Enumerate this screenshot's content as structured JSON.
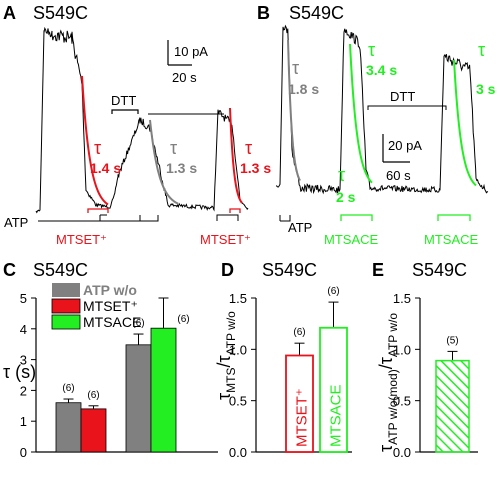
{
  "colors": {
    "gray": "#808080",
    "red": "#e8131b",
    "green": "#22ee22",
    "black": "#000000"
  },
  "chart_data": [
    {
      "type": "line",
      "panel": "A",
      "title": "S549C",
      "scalebars": {
        "y": "10 pA",
        "x": "20 s"
      },
      "segments": {
        "atp": "ATP",
        "mtset1": "MTSET⁺",
        "dtt": "DTT",
        "mtset2": "MTSET⁺"
      },
      "taus": [
        {
          "symbol": "τ",
          "value": "1.4 s",
          "color": "red"
        },
        {
          "symbol": "τ",
          "value": "1.3 s",
          "color": "gray"
        },
        {
          "symbol": "τ",
          "value": "1.3 s",
          "color": "red"
        }
      ]
    },
    {
      "type": "line",
      "panel": "B",
      "title": "S549C",
      "scalebars": {
        "y": "20 pA",
        "x": "60 s"
      },
      "segments": {
        "atp": "ATP",
        "mtsace1": "MTSACE",
        "dtt": "DTT",
        "mtsace2": "MTSACE"
      },
      "taus": [
        {
          "symbol": "τ",
          "value": "1.8 s",
          "color": "gray"
        },
        {
          "symbol": "τ",
          "value": "3.4 s",
          "color": "green"
        },
        {
          "symbol": "τ",
          "value": "2 s",
          "color": "green"
        },
        {
          "symbol": "τ",
          "value": "3 s",
          "color": "green"
        }
      ]
    },
    {
      "type": "bar",
      "panel": "C",
      "title": "S549C",
      "ylabel": "τ (s)",
      "ylim": [
        0,
        5
      ],
      "yticks": [
        "0",
        "1",
        "2",
        "3",
        "4",
        "5"
      ],
      "legend": [
        "ATP w/o",
        "MTSET⁺",
        "MTSACE"
      ],
      "legend_colors": [
        "gray",
        "red",
        "green"
      ],
      "groups": [
        {
          "bars": [
            {
              "series": "ATP w/o",
              "value": 1.6,
              "error": 0.12,
              "n": "(6)"
            },
            {
              "series": "MTSET⁺",
              "value": 1.4,
              "error": 0.1,
              "n": "(6)"
            }
          ]
        },
        {
          "bars": [
            {
              "series": "ATP w/o",
              "value": 3.48,
              "error": 0.35,
              "n": "(6)"
            },
            {
              "series": "MTSACE",
              "value": 4.02,
              "error": 0.98,
              "n": "(6)"
            }
          ]
        }
      ]
    },
    {
      "type": "bar",
      "panel": "D",
      "title": "S549C",
      "ylabel_main": "τ",
      "ylabel_sub": "MTS",
      "ylabel_den_main": "τ",
      "ylabel_den_sub": "ATP w/o",
      "ylim": [
        0,
        1.5
      ],
      "yticks": [
        "0.0",
        "0.5",
        "1.0",
        "1.5"
      ],
      "bars": [
        {
          "label": "MTSET⁺",
          "value": 0.94,
          "error": 0.12,
          "n": "(6)",
          "color": "red"
        },
        {
          "label": "MTSACE",
          "value": 1.21,
          "error": 0.25,
          "n": "(6)",
          "color": "green"
        }
      ]
    },
    {
      "type": "bar",
      "panel": "E",
      "title": "S549C",
      "ylabel_main": "τ",
      "ylabel_sub": "ATP w/o(mod)",
      "ylabel_den_main": "τ",
      "ylabel_den_sub": "ATP w/o",
      "ylim": [
        0,
        1.5
      ],
      "yticks": [
        "0.0",
        "0.5",
        "1.0",
        "1.5"
      ],
      "bars": [
        {
          "value": 0.89,
          "error": 0.09,
          "n": "(5)",
          "color": "green",
          "pattern": "hatched"
        }
      ]
    }
  ]
}
